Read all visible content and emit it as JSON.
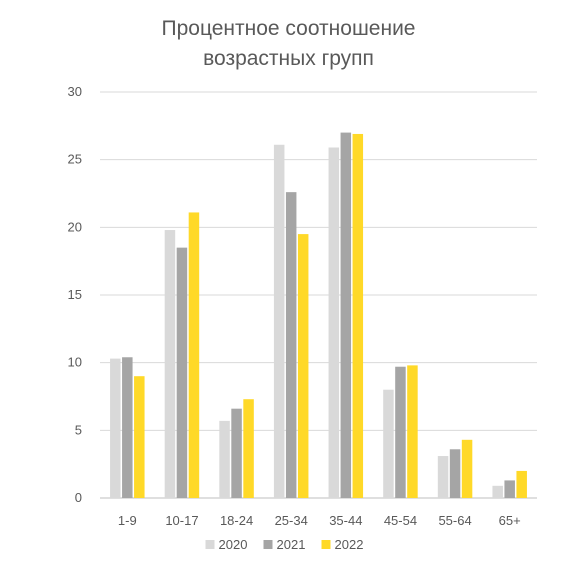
{
  "chart_data": {
    "type": "bar",
    "title_lines": [
      "Процентное соотношение",
      "возрастных групп"
    ],
    "categories": [
      "1-9",
      "10-17",
      "18-24",
      "25-34",
      "35-44",
      "45-54",
      "55-64",
      "65+"
    ],
    "series": [
      {
        "name": "2020",
        "color": "#d9d9d9",
        "values": [
          10.3,
          19.8,
          5.7,
          26.1,
          25.9,
          8.0,
          3.1,
          0.9
        ]
      },
      {
        "name": "2021",
        "color": "#a5a5a5",
        "values": [
          10.4,
          18.5,
          6.6,
          22.6,
          27.0,
          9.7,
          3.6,
          1.3
        ]
      },
      {
        "name": "2022",
        "color": "#ffd928",
        "values": [
          9.0,
          21.1,
          7.3,
          19.5,
          26.9,
          9.8,
          4.3,
          2.0
        ]
      }
    ],
    "yticks": [
      "0",
      "5",
      "10",
      "15",
      "20",
      "25",
      "30"
    ],
    "ylim": [
      0,
      30
    ],
    "grid": true,
    "legend_position": "bottom"
  }
}
